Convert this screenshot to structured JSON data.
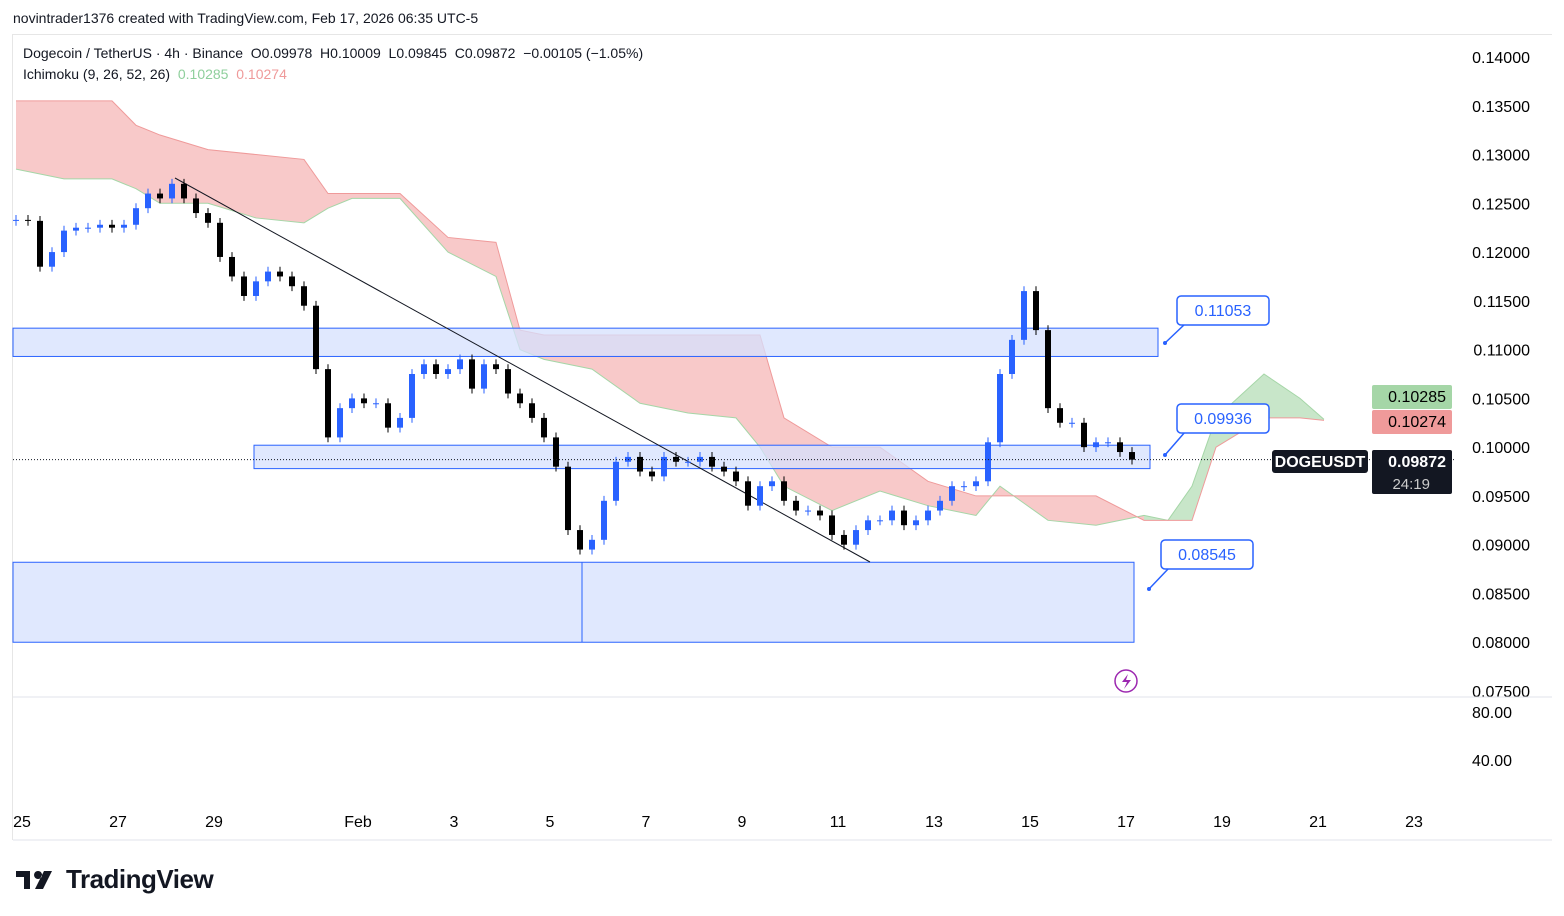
{
  "credit": "novintrader1376 created with TradingView.com, Feb 17, 2026 06:35 UTC-5",
  "legend": {
    "symbol": "Dogecoin / TetherUS · 4h · Binance",
    "open": "O0.09978",
    "high": "H0.10009",
    "low": "L0.09845",
    "close": "C0.09872",
    "change": "−0.00105 (−1.05%)",
    "indicator": "Ichimoku (9, 26, 52, 26)",
    "ind_a": "0.10285",
    "ind_b": "0.10274"
  },
  "price_tag": {
    "symbol": "DOGEUSDT",
    "price": "0.09872",
    "countdown": "24:19"
  },
  "brand": "TradingView",
  "colors": {
    "up": "#2962ff",
    "down": "#000000",
    "cloud_bear": "#f8c9c9",
    "cloud_bull": "#c8e6c9",
    "zone": "#d6e0fd",
    "zone_border": "#2962ff"
  },
  "chart_data": {
    "type": "candlestick",
    "symbol": "DOGEUSDT",
    "timeframe": "4h",
    "y_ticks": [
      "0.14000",
      "0.13500",
      "0.13000",
      "0.12500",
      "0.12000",
      "0.11500",
      "0.11000",
      "0.10500",
      "0.10000",
      "0.09500",
      "0.09000",
      "0.08500",
      "0.08000",
      "0.07500"
    ],
    "ylim": [
      0.075,
      0.14
    ],
    "x_ticks": [
      "25",
      "27",
      "29",
      "Feb",
      "3",
      "5",
      "7",
      "9",
      "11",
      "13",
      "15",
      "17",
      "19",
      "21",
      "23"
    ],
    "first_open": 0.1232,
    "closes": [
      0.1233,
      0.1232,
      0.1185,
      0.12,
      0.1222,
      0.1225,
      0.1225,
      0.1228,
      0.1225,
      0.1228,
      0.1245,
      0.126,
      0.1255,
      0.127,
      0.1255,
      0.124,
      0.123,
      0.1195,
      0.1175,
      0.1155,
      0.117,
      0.118,
      0.1175,
      0.1165,
      0.1145,
      0.108,
      0.101,
      0.104,
      0.105,
      0.1045,
      0.1045,
      0.102,
      0.103,
      0.1075,
      0.1085,
      0.1075,
      0.108,
      0.109,
      0.106,
      0.1085,
      0.108,
      0.1055,
      0.1045,
      0.103,
      0.101,
      0.098,
      0.0915,
      0.0895,
      0.0905,
      0.0945,
      0.0985,
      0.099,
      0.0975,
      0.097,
      0.099,
      0.0985,
      0.0985,
      0.099,
      0.098,
      0.0975,
      0.0965,
      0.094,
      0.096,
      0.0965,
      0.0945,
      0.0935,
      0.0935,
      0.093,
      0.091,
      0.09,
      0.0915,
      0.0925,
      0.0925,
      0.0935,
      0.092,
      0.0925,
      0.0935,
      0.0945,
      0.096,
      0.096,
      0.0965,
      0.1005,
      0.1075,
      0.111,
      0.116,
      0.112,
      0.104,
      0.1025,
      0.1025,
      0.1,
      0.1005,
      0.1005,
      0.0995,
      0.09872
    ],
    "ichimoku": {
      "label": "Ichimoku (9, 26, 52, 26)",
      "x_index": [
        0,
        4,
        8,
        10,
        12,
        16,
        20,
        24,
        26,
        28,
        32,
        36,
        40,
        42,
        44,
        48,
        52,
        56,
        60,
        62,
        64,
        68,
        72,
        76,
        80,
        82,
        86,
        90,
        94,
        96,
        98,
        100,
        104,
        107,
        109
      ],
      "span_a": [
        0.1285,
        0.1275,
        0.1275,
        0.1265,
        0.125,
        0.125,
        0.1235,
        0.123,
        0.1245,
        0.1255,
        0.1255,
        0.12,
        0.1175,
        0.11,
        0.109,
        0.108,
        0.1045,
        0.1035,
        0.103,
        0.1,
        0.096,
        0.0935,
        0.0955,
        0.094,
        0.093,
        0.096,
        0.0925,
        0.092,
        0.093,
        0.0925,
        0.096,
        0.103,
        0.1075,
        0.105,
        0.10285
      ],
      "span_b": [
        0.1355,
        0.1355,
        0.1355,
        0.133,
        0.132,
        0.1305,
        0.13,
        0.1295,
        0.126,
        0.126,
        0.126,
        0.1215,
        0.121,
        0.112,
        0.1115,
        0.1115,
        0.1115,
        0.1115,
        0.1115,
        0.1115,
        0.103,
        0.1,
        0.1,
        0.0965,
        0.095,
        0.095,
        0.095,
        0.095,
        0.0925,
        0.0925,
        0.0925,
        0.1,
        0.103,
        0.103,
        0.10274
      ]
    },
    "zones": [
      {
        "top": 0.1122,
        "bottom": 0.1093,
        "label": "0.11053"
      },
      {
        "top": 0.1002,
        "bottom": 0.0978,
        "label": "0.09936"
      },
      {
        "top": 0.0882,
        "bottom": 0.08,
        "label": "0.08545"
      }
    ],
    "lower_pane_ticks": [
      "80.00",
      "40.00"
    ]
  }
}
